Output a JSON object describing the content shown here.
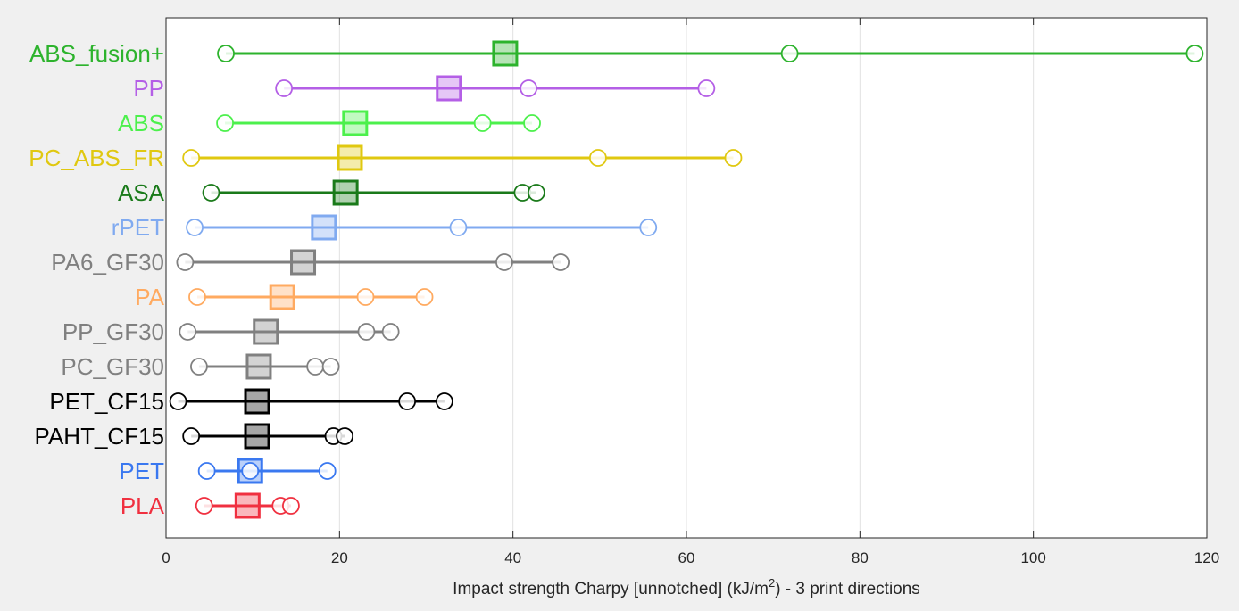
{
  "chart_data": {
    "type": "scatter",
    "title": "",
    "xlabel_main": "Impact strength Charpy [unnotched] (kJ/m",
    "xlabel_sup": "2",
    "xlabel_tail": ") - 3 print directions",
    "ylabel": "",
    "xlim": [
      0,
      120
    ],
    "xticks": [
      0,
      20,
      40,
      60,
      80,
      100,
      120
    ],
    "grid": "vertical",
    "legend": "none",
    "series": [
      {
        "name": "ABS_fusion+",
        "color": "#2db32d",
        "points": [
          6.9,
          71.9,
          118.6
        ],
        "mean": 39.1
      },
      {
        "name": "PP",
        "color": "#b45fe6",
        "points": [
          13.6,
          41.8,
          62.3
        ],
        "mean": 32.6
      },
      {
        "name": "ABS",
        "color": "#4cf04c",
        "points": [
          6.8,
          36.5,
          42.2
        ],
        "mean": 21.8
      },
      {
        "name": "PC_ABS_FR",
        "color": "#e0c810",
        "points": [
          2.9,
          49.8,
          65.4
        ],
        "mean": 21.2
      },
      {
        "name": "ASA",
        "color": "#1a7a1a",
        "points": [
          5.2,
          41.1,
          42.7
        ],
        "mean": 20.7
      },
      {
        "name": "rPET",
        "color": "#80aaf0",
        "points": [
          3.3,
          33.7,
          55.6
        ],
        "mean": 18.2
      },
      {
        "name": "PA6_GF30",
        "color": "#808080",
        "points": [
          2.2,
          39.0,
          45.5
        ],
        "mean": 15.8
      },
      {
        "name": "PA",
        "color": "#ffaa60",
        "points": [
          3.6,
          23.0,
          29.8
        ],
        "mean": 13.4
      },
      {
        "name": "PP_GF30",
        "color": "#808080",
        "points": [
          2.5,
          23.1,
          25.9
        ],
        "mean": 11.5
      },
      {
        "name": "PC_GF30",
        "color": "#808080",
        "points": [
          3.8,
          17.2,
          19.0
        ],
        "mean": 10.7
      },
      {
        "name": "PET_CF15",
        "color": "#000000",
        "points": [
          1.4,
          27.8,
          32.1
        ],
        "mean": 10.5
      },
      {
        "name": "PAHT_CF15",
        "color": "#000000",
        "points": [
          2.9,
          19.3,
          20.6
        ],
        "mean": 10.5
      },
      {
        "name": "PET",
        "color": "#3a78f0",
        "points": [
          4.7,
          9.7,
          18.6
        ],
        "mean": 9.7
      },
      {
        "name": "PLA",
        "color": "#f03040",
        "points": [
          4.4,
          13.2,
          14.4
        ],
        "mean": 9.4
      }
    ]
  }
}
